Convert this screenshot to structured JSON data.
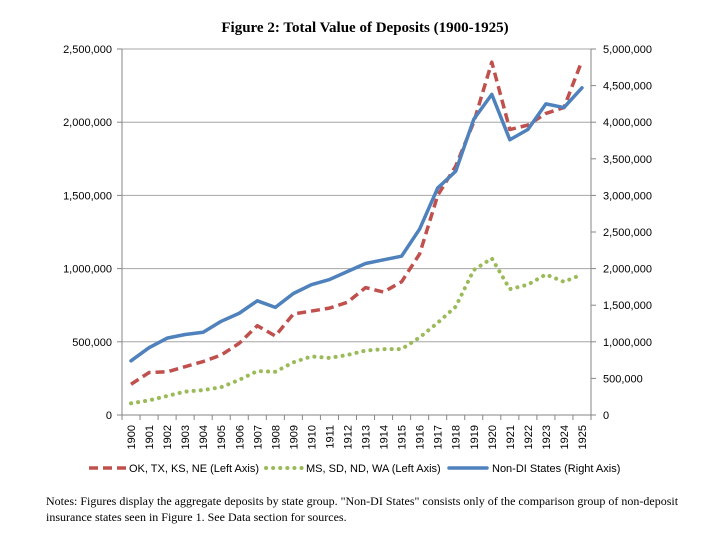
{
  "colors": {
    "series1": "#c0504d",
    "series2": "#9bbb59",
    "series3": "#4f81bd",
    "gridline": "#a6a6a6",
    "axis": "#868686"
  },
  "notes": "Notes: Figures display the aggregate deposits by state group. \"Non-DI States\" consists only of the comparison group of non-deposit insurance states seen in Figure 1. See Data section for sources.",
  "chart_data": {
    "type": "line",
    "title": "Figure 2: Total Value of Deposits (1900-1925)",
    "categories": [
      "1900",
      "1901",
      "1902",
      "1903",
      "1904",
      "1905",
      "1906",
      "1907",
      "1908",
      "1909",
      "1910",
      "1911",
      "1912",
      "1913",
      "1914",
      "1915",
      "1916",
      "1917",
      "1918",
      "1919",
      "1920",
      "1921",
      "1922",
      "1923",
      "1924",
      "1925"
    ],
    "y_left": {
      "range": [
        0,
        2500000
      ],
      "ticks": [
        0,
        500000,
        1000000,
        1500000,
        2000000,
        2500000
      ],
      "tick_labels": [
        "0",
        "500,000",
        "1,000,000",
        "1,500,000",
        "2,000,000",
        "2,500,000"
      ]
    },
    "y_right": {
      "range": [
        0,
        5000000
      ],
      "ticks": [
        0,
        500000,
        1000000,
        1500000,
        2000000,
        2500000,
        3000000,
        3500000,
        4000000,
        4500000,
        5000000
      ],
      "tick_labels": [
        "0",
        "500,000",
        "1,000,000",
        "1,500,000",
        "2,000,000",
        "2,500,000",
        "3,000,000",
        "3,500,000",
        "4,000,000",
        "4,500,000",
        "5,000,000"
      ]
    },
    "grid": "horizontal",
    "legend_position": "bottom",
    "series": [
      {
        "name": "OK, TX, KS, NE (Left Axis)",
        "axis": "left",
        "style": "dashed",
        "values": [
          210000,
          290000,
          295000,
          330000,
          365000,
          410000,
          490000,
          610000,
          540000,
          690000,
          710000,
          730000,
          770000,
          870000,
          840000,
          910000,
          1100000,
          1500000,
          1700000,
          2000000,
          2410000,
          1950000,
          1980000,
          2060000,
          2100000,
          2420000
        ]
      },
      {
        "name": "MS, SD, ND, WA (Left Axis)",
        "axis": "left",
        "style": "dotted",
        "values": [
          80000,
          100000,
          130000,
          160000,
          170000,
          190000,
          240000,
          300000,
          295000,
          360000,
          400000,
          390000,
          410000,
          440000,
          450000,
          450000,
          530000,
          630000,
          740000,
          990000,
          1070000,
          860000,
          890000,
          960000,
          910000,
          960000
        ]
      },
      {
        "name": "Non-DI States (Right Axis)",
        "axis": "right",
        "style": "solid",
        "values": [
          740000,
          920000,
          1050000,
          1100000,
          1130000,
          1280000,
          1390000,
          1560000,
          1470000,
          1660000,
          1780000,
          1850000,
          1960000,
          2070000,
          2120000,
          2170000,
          2540000,
          3100000,
          3330000,
          4040000,
          4380000,
          3760000,
          3900000,
          4250000,
          4200000,
          4470000
        ]
      }
    ]
  }
}
